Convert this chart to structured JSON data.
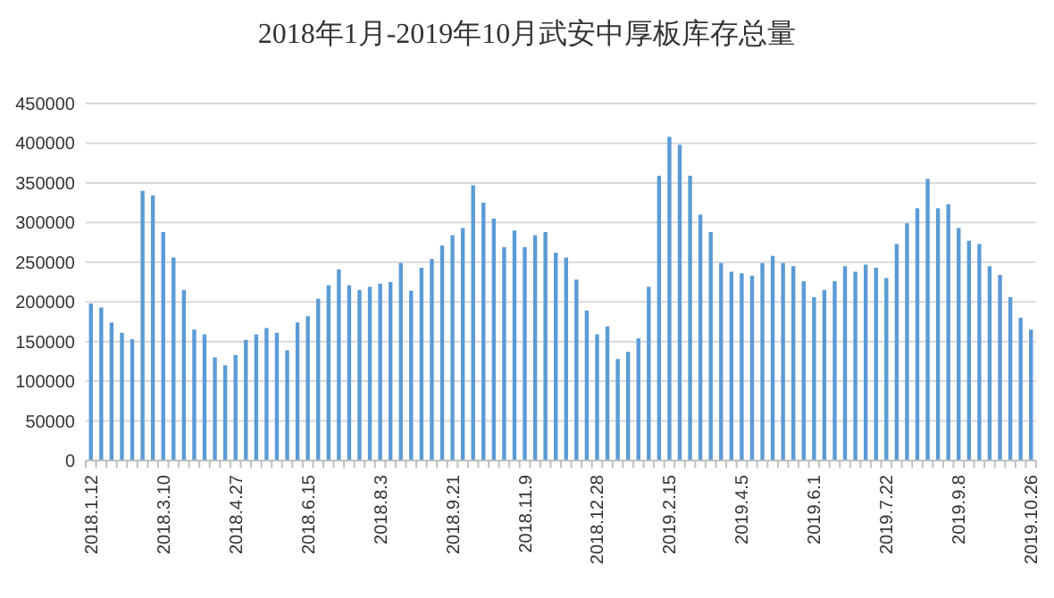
{
  "chart_data": {
    "type": "bar",
    "title": "2018年1月-2019年10月武安中厚板库存总量",
    "categories": [
      "2018.1.12",
      null,
      null,
      null,
      null,
      null,
      null,
      "2018.3.10",
      null,
      null,
      null,
      null,
      null,
      null,
      "2018.4.27",
      null,
      null,
      null,
      null,
      null,
      null,
      "2018.6.15",
      null,
      null,
      null,
      null,
      null,
      null,
      "2018.8.3",
      null,
      null,
      null,
      null,
      null,
      null,
      "2018.9.21",
      null,
      null,
      null,
      null,
      null,
      null,
      "2018.11.9",
      null,
      null,
      null,
      null,
      null,
      null,
      "2018.12.28",
      null,
      null,
      null,
      null,
      null,
      null,
      "2019.2.15",
      null,
      null,
      null,
      null,
      null,
      null,
      "2019.4.5",
      null,
      null,
      null,
      null,
      null,
      null,
      "2019.6.1",
      null,
      null,
      null,
      null,
      null,
      null,
      "2019.7.22",
      null,
      null,
      null,
      null,
      null,
      null,
      "2019.9.8",
      null,
      null,
      null,
      null,
      null,
      null,
      "2019.10.26"
    ],
    "values": [
      198000,
      193000,
      174000,
      161000,
      153000,
      340000,
      334000,
      288000,
      256000,
      215000,
      165000,
      159000,
      130000,
      120000,
      133000,
      152000,
      159000,
      167000,
      161000,
      139000,
      174000,
      182000,
      204000,
      221000,
      241000,
      221000,
      215000,
      219000,
      223000,
      225000,
      249000,
      214000,
      243000,
      254000,
      271000,
      284000,
      293000,
      347000,
      325000,
      305000,
      269000,
      290000,
      269000,
      284000,
      288000,
      262000,
      256000,
      228000,
      189000,
      159000,
      169000,
      128000,
      137000,
      154000,
      219000,
      359000,
      408000,
      398000,
      359000,
      310000,
      288000,
      249000,
      238000,
      236000,
      233000,
      249000,
      258000,
      249000,
      245000,
      226000,
      206000,
      215000,
      226000,
      245000,
      238000,
      247000,
      243000,
      230000,
      273000,
      299000,
      318000,
      355000,
      318000,
      323000,
      293000,
      277000,
      273000,
      245000,
      234000,
      206000,
      180000,
      165000
    ],
    "color": "#5b9bd5",
    "ylim": [
      0,
      450000
    ],
    "yticks": [
      0,
      50000,
      100000,
      150000,
      200000,
      250000,
      300000,
      350000,
      400000,
      450000
    ],
    "grid": "y"
  }
}
